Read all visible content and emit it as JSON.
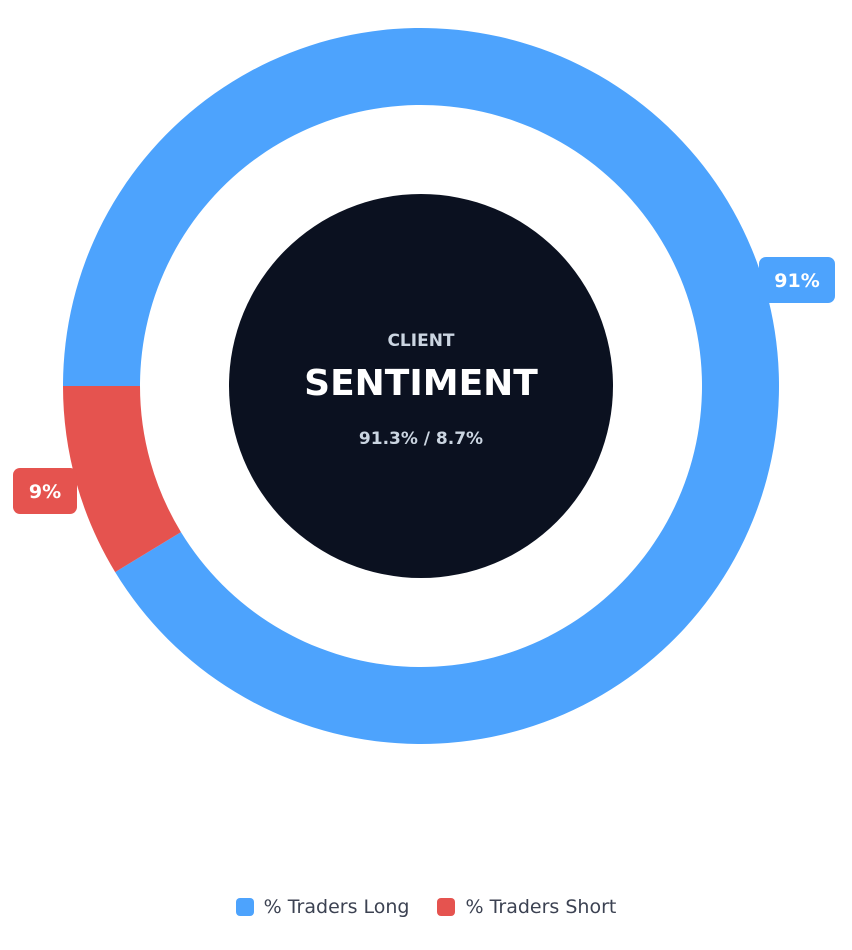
{
  "chart_data": {
    "type": "pie",
    "variant": "doughnut",
    "center": {
      "eyebrow": "CLIENT",
      "title": "SENTIMENT",
      "summary": "91.3% / 8.7%"
    },
    "series": [
      {
        "name": "% Traders Long",
        "value": 91.3,
        "label": "91%",
        "color": "#4da3fd"
      },
      {
        "name": "% Traders Short",
        "value": 8.7,
        "label": "9%",
        "color": "#e5534f"
      }
    ],
    "legend_position": "bottom"
  },
  "colors": {
    "center_fill": "#0b1120",
    "center_text": "#ffffff",
    "center_subtext": "#cbd5e1",
    "legend_text": "#3c4252"
  }
}
